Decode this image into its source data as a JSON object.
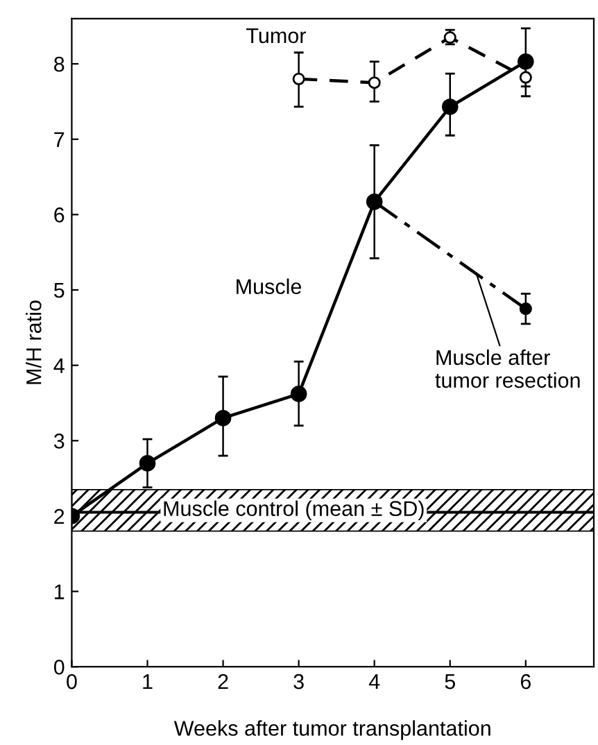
{
  "chart_data": {
    "type": "line",
    "xlabel": "Weeks after tumor transplantation",
    "ylabel": "M/H ratio",
    "xlim": [
      0,
      6.9
    ],
    "xticks": [
      0,
      1,
      2,
      3,
      4,
      5,
      6
    ],
    "ylim": [
      0,
      8.6
    ],
    "yticks": [
      0,
      1,
      2,
      3,
      4,
      5,
      6,
      7,
      8
    ],
    "grid": false,
    "legend": false,
    "marker": "circle",
    "series": [
      {
        "name": "Muscle",
        "color": "#000000",
        "line_style": "solid",
        "x": [
          0,
          1,
          2,
          3,
          4,
          5,
          6
        ],
        "values": [
          2.0,
          2.7,
          3.3,
          3.62,
          6.17,
          7.43,
          8.03
        ],
        "errors": [
          null,
          [
            2.38,
            3.02
          ],
          [
            2.8,
            3.85
          ],
          [
            3.2,
            4.05
          ],
          [
            5.42,
            6.92
          ],
          [
            7.05,
            7.87
          ],
          [
            7.57,
            8.47
          ]
        ]
      },
      {
        "name": "Tumor",
        "color": "#000000",
        "line_style": "dashed",
        "x": [
          3,
          4,
          5,
          6
        ],
        "values": [
          7.8,
          7.75,
          8.35,
          7.82
        ],
        "errors": [
          [
            7.43,
            8.15
          ],
          [
            7.5,
            8.03
          ],
          [
            8.26,
            8.45
          ],
          [
            7.7,
            7.95
          ]
        ]
      },
      {
        "name": "Muscle after tumor resection",
        "color": "#000000",
        "line_style": "dashdot",
        "x": [
          4,
          6
        ],
        "values": [
          6.17,
          4.75
        ],
        "errors": [
          null,
          [
            4.55,
            4.95
          ]
        ]
      }
    ],
    "ref_lines": [
      {
        "axis": "y",
        "value": 2.05,
        "color": "#000000",
        "line_style": "solid"
      }
    ],
    "bands": [
      {
        "axis": "y",
        "from": 1.8,
        "to": 2.35,
        "label": "Muscle control (mean ± SD)",
        "color": "#000000"
      }
    ]
  }
}
